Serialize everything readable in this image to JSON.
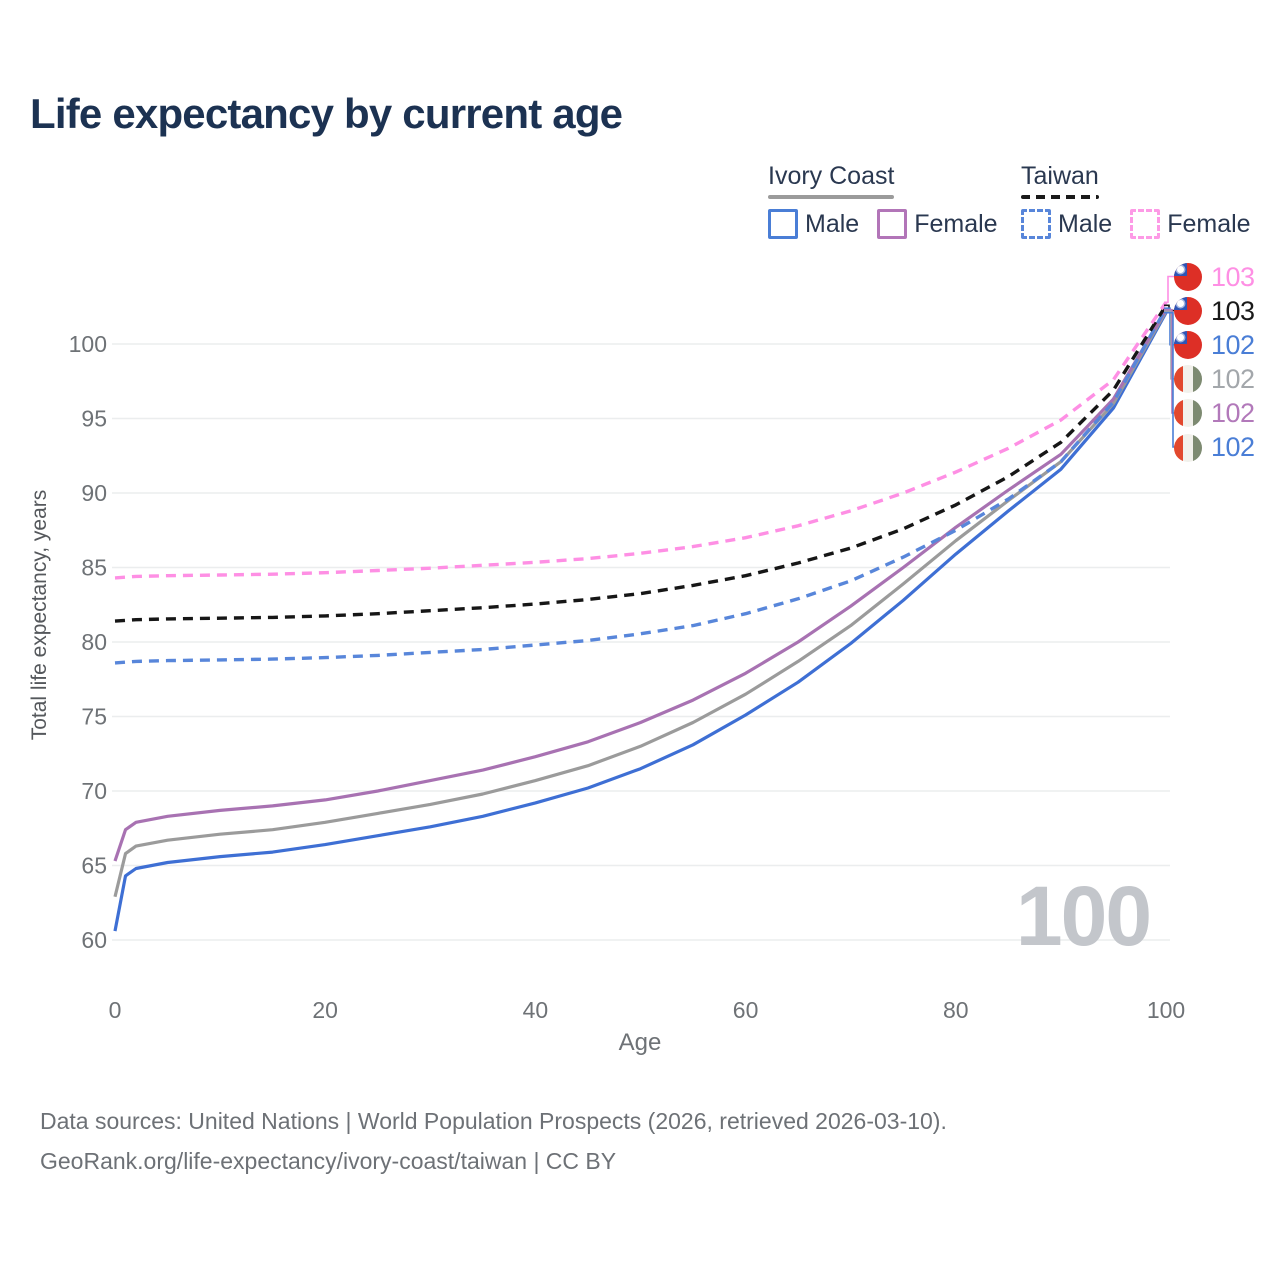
{
  "title": "Life expectancy by current age",
  "watermark": "100",
  "legend": {
    "groups": [
      {
        "label": "Ivory Coast",
        "line_style": "solid",
        "underline_color": "#9b9b9b",
        "items": [
          {
            "label": "Male",
            "color": "#4a7ed6"
          },
          {
            "label": "Female",
            "color": "#b275b8"
          }
        ]
      },
      {
        "label": "Taiwan",
        "line_style": "dashed",
        "underline_color": "#1a1a1a",
        "items": [
          {
            "label": "Male",
            "color": "#5886da"
          },
          {
            "label": "Female",
            "color": "#fd9ae6"
          }
        ]
      }
    ]
  },
  "end_labels": [
    {
      "value": "103",
      "color": "#fe8fe4",
      "flag": "taiwan",
      "series": "Taiwan Female"
    },
    {
      "value": "103",
      "color": "#1a1a1a",
      "flag": "taiwan",
      "series": "Taiwan"
    },
    {
      "value": "102",
      "color": "#4a7ed6",
      "flag": "taiwan",
      "series": "Taiwan Male"
    },
    {
      "value": "102",
      "color": "#a3a7ab",
      "flag": "ivory-coast",
      "series": "Ivory Coast"
    },
    {
      "value": "102",
      "color": "#b279ba",
      "flag": "ivory-coast",
      "series": "Ivory Coast Female"
    },
    {
      "value": "102",
      "color": "#4a7ed6",
      "flag": "ivory-coast",
      "series": "Ivory Coast Male"
    }
  ],
  "source": {
    "line1": "Data sources: United Nations | World Population Prospects (2026, retrieved 2026-03-10).",
    "line2": "GeoRank.org/life-expectancy/ivory-coast/taiwan | CC BY"
  },
  "chart_data": {
    "type": "line",
    "title": "Life expectancy by current age",
    "xlabel": "Age",
    "ylabel": "Total life expectancy, years",
    "xlim": [
      0,
      100
    ],
    "ylim": [
      58.5,
      104
    ],
    "x_ticks": [
      0,
      20,
      40,
      60,
      80,
      100
    ],
    "y_ticks": [
      60,
      65,
      70,
      75,
      80,
      85,
      90,
      95,
      100
    ],
    "grid": "horizontal",
    "legend_position": "top-right",
    "ages": [
      0,
      1,
      2,
      5,
      10,
      15,
      20,
      25,
      30,
      35,
      40,
      45,
      50,
      55,
      60,
      65,
      70,
      75,
      80,
      85,
      90,
      95,
      100
    ],
    "series": [
      {
        "name": "Ivory Coast Male",
        "country": "Ivory Coast",
        "sex": "Male",
        "line_style": "solid",
        "color": "#3e6fd4",
        "values": [
          60.6,
          64.3,
          64.8,
          65.2,
          65.6,
          65.9,
          66.4,
          67.0,
          67.6,
          68.3,
          69.2,
          70.2,
          71.5,
          73.1,
          75.1,
          77.3,
          79.9,
          82.8,
          85.9,
          88.8,
          91.6,
          95.7,
          102.1
        ]
      },
      {
        "name": "Ivory Coast",
        "country": "Ivory Coast",
        "sex": "Both",
        "line_style": "solid",
        "color": "#9b9b9b",
        "values": [
          62.9,
          65.8,
          66.3,
          66.7,
          67.1,
          67.4,
          67.9,
          68.5,
          69.1,
          69.8,
          70.7,
          71.7,
          73.0,
          74.6,
          76.5,
          78.7,
          81.1,
          83.9,
          86.8,
          89.5,
          92.1,
          96.0,
          102.2
        ]
      },
      {
        "name": "Ivory Coast Female",
        "country": "Ivory Coast",
        "sex": "Female",
        "line_style": "solid",
        "color": "#a872b2",
        "values": [
          65.3,
          67.4,
          67.9,
          68.3,
          68.7,
          69.0,
          69.4,
          70.0,
          70.7,
          71.4,
          72.3,
          73.3,
          74.6,
          76.1,
          77.9,
          80.0,
          82.4,
          85.0,
          87.7,
          90.2,
          92.6,
          96.3,
          102.3
        ]
      },
      {
        "name": "Taiwan Male",
        "country": "Taiwan",
        "sex": "Male",
        "line_style": "dashed",
        "color": "#5886da",
        "values": [
          78.6,
          78.65,
          78.7,
          78.75,
          78.8,
          78.85,
          78.95,
          79.1,
          79.3,
          79.5,
          79.8,
          80.1,
          80.55,
          81.1,
          81.9,
          82.9,
          84.1,
          85.7,
          87.5,
          89.6,
          92.1,
          96.1,
          102.4
        ]
      },
      {
        "name": "Taiwan",
        "country": "Taiwan",
        "sex": "Both",
        "line_style": "dashed",
        "color": "#161616",
        "values": [
          81.4,
          81.45,
          81.5,
          81.55,
          81.6,
          81.65,
          81.75,
          81.9,
          82.1,
          82.3,
          82.55,
          82.85,
          83.25,
          83.8,
          84.45,
          85.3,
          86.3,
          87.6,
          89.2,
          91.1,
          93.4,
          96.9,
          102.6
        ]
      },
      {
        "name": "Taiwan Female",
        "country": "Taiwan",
        "sex": "Female",
        "line_style": "dashed",
        "color": "#fe8fe4",
        "values": [
          84.3,
          84.35,
          84.4,
          84.45,
          84.5,
          84.55,
          84.65,
          84.8,
          84.95,
          85.15,
          85.35,
          85.6,
          85.95,
          86.4,
          87.0,
          87.8,
          88.8,
          90.0,
          91.4,
          93.0,
          94.9,
          97.6,
          102.8
        ]
      }
    ]
  }
}
